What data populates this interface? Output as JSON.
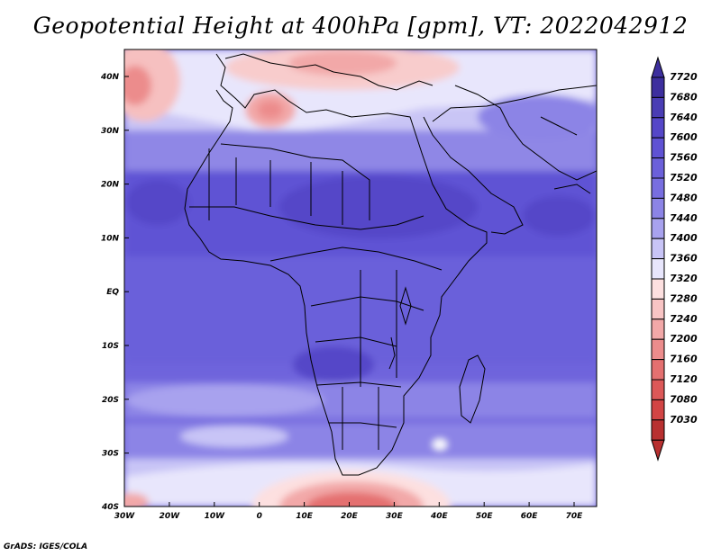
{
  "title": "Geopotential Height at 400hPa [gpm], VT: 2022042912",
  "credit": "GrADS: IGES/COLA",
  "map": {
    "lat_labels": [
      "40N",
      "30N",
      "20N",
      "10N",
      "EQ",
      "10S",
      "20S",
      "30S",
      "40S"
    ],
    "lon_labels": [
      "30W",
      "20W",
      "10W",
      "0",
      "10E",
      "20E",
      "30E",
      "40E",
      "50E",
      "60E",
      "70E"
    ]
  },
  "colorbar": {
    "labels": [
      "7720",
      "7680",
      "7640",
      "7600",
      "7560",
      "7520",
      "7480",
      "7440",
      "7400",
      "7360",
      "7320",
      "7280",
      "7240",
      "7200",
      "7160",
      "7120",
      "7080",
      "7030"
    ],
    "colors": [
      "#3d2f9e",
      "#4a3db4",
      "#5547c8",
      "#5f52d4",
      "#6b60da",
      "#786ee0",
      "#8c84e6",
      "#a8a2ee",
      "#c8c4f6",
      "#e8e6fc",
      "#fde0e0",
      "#f8c4c4",
      "#f2a8a8",
      "#ec8c8c",
      "#e47070",
      "#dc5858",
      "#d24545",
      "#b83030"
    ]
  }
}
